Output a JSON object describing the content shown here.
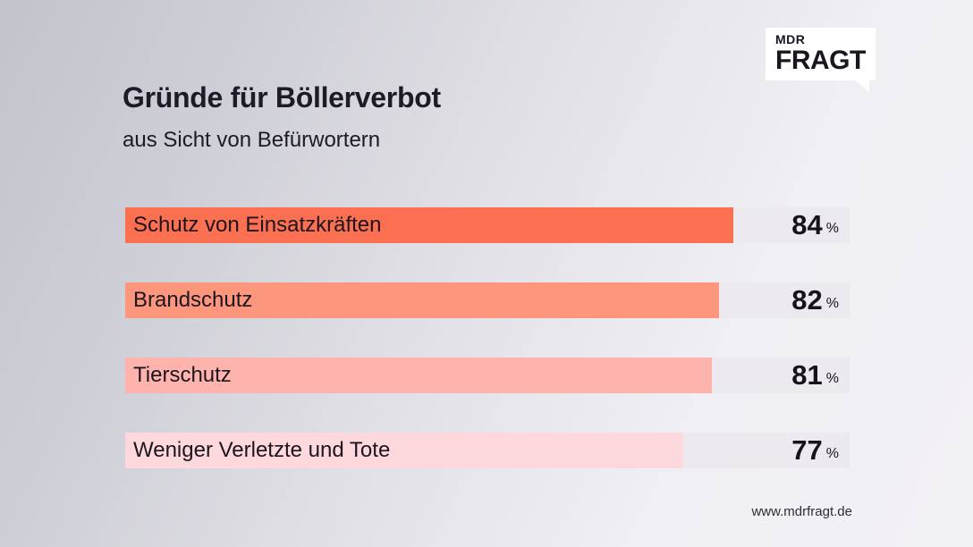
{
  "logo": {
    "line1": "MDR",
    "line2": "FRAGT"
  },
  "header": {
    "title": "Gründe für Böllerverbot",
    "subtitle": "aus Sicht von Befürwortern"
  },
  "chart_data": {
    "type": "bar",
    "orientation": "horizontal",
    "title": "Gründe für Böllerverbot",
    "subtitle": "aus Sicht von Befürwortern",
    "categories": [
      "Schutz von Einsatzkräften",
      "Brandschutz",
      "Tierschutz",
      "Weniger Verletzte und Tote"
    ],
    "values": [
      84,
      82,
      81,
      77
    ],
    "unit": "%",
    "xlim": [
      0,
      100
    ],
    "grid": false,
    "legend": false,
    "bar_colors": [
      "#fb7050",
      "#fc977d",
      "#feb4ac",
      "#fdd8dc"
    ],
    "track_color": "#eceaef"
  },
  "footer": {
    "url": "www.mdrfragt.de"
  }
}
